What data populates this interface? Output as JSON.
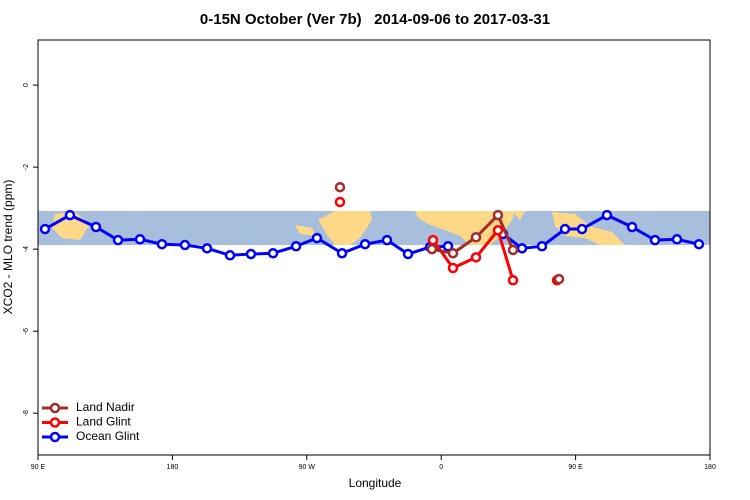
{
  "chart_data": {
    "type": "line",
    "title": "0-15N October (Ver 7b)   2014-09-06 to 2017-03-31",
    "x_label": "Longitude",
    "y_label": "XCO2 - MLO trend (ppm)",
    "xlim": [
      90,
      540
    ],
    "ylim": [
      -9.02,
      1.1
    ],
    "xticks": [
      {
        "value": 90,
        "label": "90 E"
      },
      180,
      {
        "value": 270,
        "label": "90 W"
      },
      {
        "value": 360,
        "label": "0"
      },
      {
        "value": 450,
        "label": "90 E"
      },
      {
        "value": 540,
        "label": "180"
      }
    ],
    "yticks": [
      0,
      -2,
      -4,
      -6,
      -8
    ],
    "legend": "bottom-left",
    "series": [
      {
        "name": "Land Nadir",
        "color": "#a52a2a",
        "x": [
          292.2,
          null,
          353.8,
          367.9,
          383.3,
          398,
          408.1,
          null,
          438.9
        ],
        "values": [
          -2.49,
          null,
          -4.0,
          -4.1,
          -3.71,
          -3.17,
          -4.02,
          null,
          -4.73
        ]
      },
      {
        "name": "Land Glint",
        "color": "#ff0000",
        "x": [
          292.2,
          null,
          354.5,
          367.9,
          383.3,
          398,
          408.1,
          null,
          437.6
        ],
        "values": [
          -2.85,
          null,
          -3.78,
          -4.46,
          -4.2,
          -3.54,
          -4.76,
          null,
          -4.76
        ]
      },
      {
        "name": "Ocean Glint",
        "color": "#0000ff",
        "x": [
          94.7,
          111.4,
          128.8,
          143.6,
          158.3,
          173.0,
          188.4,
          203.2,
          218.6,
          232.6,
          247.4,
          262.8,
          276.8,
          293.6,
          309.0,
          323.7,
          337.8,
          352.5,
          364.6,
          null,
          401.4,
          414.1,
          427.5,
          442.9,
          454.3,
          471,
          487.8,
          503.2,
          517.9,
          532.6
        ],
        "values": [
          -3.51,
          -3.17,
          -3.46,
          -3.78,
          -3.76,
          -3.88,
          -3.9,
          -3.98,
          -4.15,
          -4.12,
          -4.1,
          -3.93,
          -3.73,
          -4.1,
          -3.88,
          -3.78,
          -4.12,
          -3.95,
          -3.93,
          null,
          -3.63,
          -3.98,
          -3.93,
          -3.51,
          -3.51,
          -3.17,
          -3.46,
          -3.78,
          -3.76,
          -3.88
        ]
      }
    ]
  }
}
